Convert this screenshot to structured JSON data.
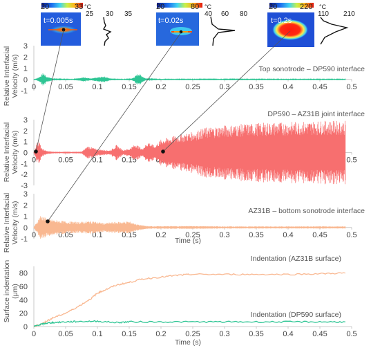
{
  "figure": {
    "insets": [
      {
        "time_label": "t=0.005s",
        "scale_min": "20",
        "scale_max": "33",
        "unit": "°C",
        "profile_ticks": [
          "25",
          "30",
          "35"
        ]
      },
      {
        "time_label": "t=0.02s",
        "scale_min": "20",
        "scale_max": "80",
        "unit": "°C",
        "profile_ticks": [
          "40",
          "60",
          "80"
        ]
      },
      {
        "time_label": "t=0.2s",
        "scale_min": "20",
        "scale_max": "220",
        "unit": "°C",
        "profile_ticks": [
          "110",
          "210"
        ]
      }
    ]
  },
  "chart_data": [
    {
      "type": "line",
      "annotation": "Top sonotrode – DP590 interface",
      "ylabel_line1": "Relative Interfacial",
      "ylabel_line2": "Velocity (m/s)",
      "xlabel": "",
      "xlim": [
        0,
        0.5
      ],
      "ylim": [
        -1,
        3
      ],
      "x_ticks": [
        "0",
        "0.05",
        "0.1",
        "0.15",
        "0.2",
        "0.25",
        "0.3",
        "0.35",
        "0.4",
        "0.45",
        "0.5"
      ],
      "y_ticks": [
        "3",
        "2",
        "1",
        "0",
        "-1"
      ],
      "series": [
        {
          "color": "#2ec594",
          "envelope": [
            [
              0.0,
              0.05
            ],
            [
              0.005,
              0.1
            ],
            [
              0.01,
              0.3
            ],
            [
              0.015,
              0.6
            ],
            [
              0.02,
              0.25
            ],
            [
              0.03,
              0.1
            ],
            [
              0.06,
              0.06
            ],
            [
              0.08,
              0.2
            ],
            [
              0.09,
              0.08
            ],
            [
              0.11,
              0.28
            ],
            [
              0.12,
              0.1
            ],
            [
              0.14,
              0.06
            ],
            [
              0.155,
              0.1
            ],
            [
              0.165,
              0.55
            ],
            [
              0.175,
              0.12
            ],
            [
              0.2,
              0.07
            ],
            [
              0.3,
              0.08
            ],
            [
              0.4,
              0.07
            ],
            [
              0.49,
              0.07
            ]
          ]
        }
      ]
    },
    {
      "type": "line",
      "annotation": "DP590 – AZ31B joint interface",
      "ylabel_line1": "Relative Interfacial",
      "ylabel_line2": "Velocity (m/s)",
      "xlabel": "",
      "xlim": [
        0,
        0.5
      ],
      "ylim": [
        -3,
        3
      ],
      "x_ticks": [
        "0",
        "0.05",
        "0.1",
        "0.15",
        "0.2",
        "0.25",
        "0.3",
        "0.35",
        "0.4",
        "0.45",
        "0.5"
      ],
      "y_ticks": [
        "3",
        "2",
        "1",
        "0",
        "-1",
        "-2",
        "-3"
      ],
      "series": [
        {
          "color": "#f76f6f",
          "envelope": [
            [
              0.0,
              0.05
            ],
            [
              0.004,
              0.8
            ],
            [
              0.008,
              1.1
            ],
            [
              0.012,
              0.4
            ],
            [
              0.02,
              0.15
            ],
            [
              0.03,
              0.08
            ],
            [
              0.075,
              0.08
            ],
            [
              0.085,
              0.6
            ],
            [
              0.1,
              0.3
            ],
            [
              0.12,
              0.2
            ],
            [
              0.13,
              0.7
            ],
            [
              0.14,
              0.25
            ],
            [
              0.15,
              0.35
            ],
            [
              0.16,
              0.8
            ],
            [
              0.17,
              0.35
            ],
            [
              0.18,
              1.0
            ],
            [
              0.19,
              0.6
            ],
            [
              0.2,
              1.2
            ],
            [
              0.22,
              1.5
            ],
            [
              0.25,
              1.9
            ],
            [
              0.27,
              2.3
            ],
            [
              0.3,
              2.5
            ],
            [
              0.35,
              2.7
            ],
            [
              0.4,
              2.8
            ],
            [
              0.45,
              2.9
            ],
            [
              0.49,
              2.9
            ]
          ]
        }
      ]
    },
    {
      "type": "line",
      "annotation": "AZ31B – bottom sonotrode interface",
      "ylabel_line1": "Relative Interfacial",
      "ylabel_line2": "Velocity (m/s)",
      "xlabel": "Time (s)",
      "xlim": [
        0,
        0.5
      ],
      "ylim": [
        -1,
        3
      ],
      "x_ticks": [
        "0",
        "0.05",
        "0.1",
        "0.15",
        "0.2",
        "0.25",
        "0.3",
        "0.35",
        "0.4",
        "0.45",
        "0.5"
      ],
      "y_ticks": [
        "3",
        "2",
        "1",
        "0",
        "-1"
      ],
      "series": [
        {
          "color": "#f9b891",
          "envelope": [
            [
              0.0,
              0.05
            ],
            [
              0.005,
              0.5
            ],
            [
              0.01,
              1.1
            ],
            [
              0.015,
              1.0
            ],
            [
              0.02,
              0.8
            ],
            [
              0.03,
              0.7
            ],
            [
              0.05,
              0.55
            ],
            [
              0.07,
              0.5
            ],
            [
              0.09,
              0.6
            ],
            [
              0.11,
              0.4
            ],
            [
              0.13,
              0.5
            ],
            [
              0.15,
              0.55
            ],
            [
              0.165,
              0.25
            ],
            [
              0.18,
              0.12
            ],
            [
              0.2,
              0.12
            ],
            [
              0.25,
              0.13
            ],
            [
              0.3,
              0.1
            ],
            [
              0.4,
              0.1
            ],
            [
              0.49,
              0.1
            ]
          ]
        }
      ]
    },
    {
      "type": "line",
      "ylabel_line1": "Surface indentation",
      "ylabel_line2": "(μm)",
      "xlabel": "Time (s)",
      "xlim": [
        0,
        0.5
      ],
      "ylim": [
        0,
        90
      ],
      "x_ticks": [
        "0",
        "0.05",
        "0.1",
        "0.15",
        "0.2",
        "0.25",
        "0.3",
        "0.35",
        "0.4",
        "0.45",
        "0.5"
      ],
      "y_ticks": [
        "80",
        "60",
        "40",
        "20",
        "0"
      ],
      "series": [
        {
          "name": "Indentation (AZ31B surface)",
          "color": "#f9b891",
          "x": [
            0.0,
            0.01,
            0.02,
            0.03,
            0.05,
            0.07,
            0.09,
            0.1,
            0.11,
            0.13,
            0.15,
            0.17,
            0.2,
            0.23,
            0.25,
            0.3,
            0.35,
            0.4,
            0.45,
            0.49
          ],
          "y": [
            0,
            3,
            8,
            13,
            20,
            30,
            42,
            50,
            54,
            62,
            66,
            71,
            74,
            77,
            78,
            78,
            78,
            78,
            79,
            80
          ]
        },
        {
          "name": "Indentation (DP590 surface)",
          "color": "#2ec594",
          "x": [
            0.0,
            0.01,
            0.02,
            0.03,
            0.05,
            0.07,
            0.1,
            0.13,
            0.15,
            0.2,
            0.25,
            0.3,
            0.35,
            0.4,
            0.45,
            0.49
          ],
          "y": [
            0,
            3,
            5,
            6,
            7,
            7.5,
            8,
            6,
            7,
            7,
            7,
            7,
            7,
            7,
            7,
            7
          ]
        }
      ]
    }
  ]
}
